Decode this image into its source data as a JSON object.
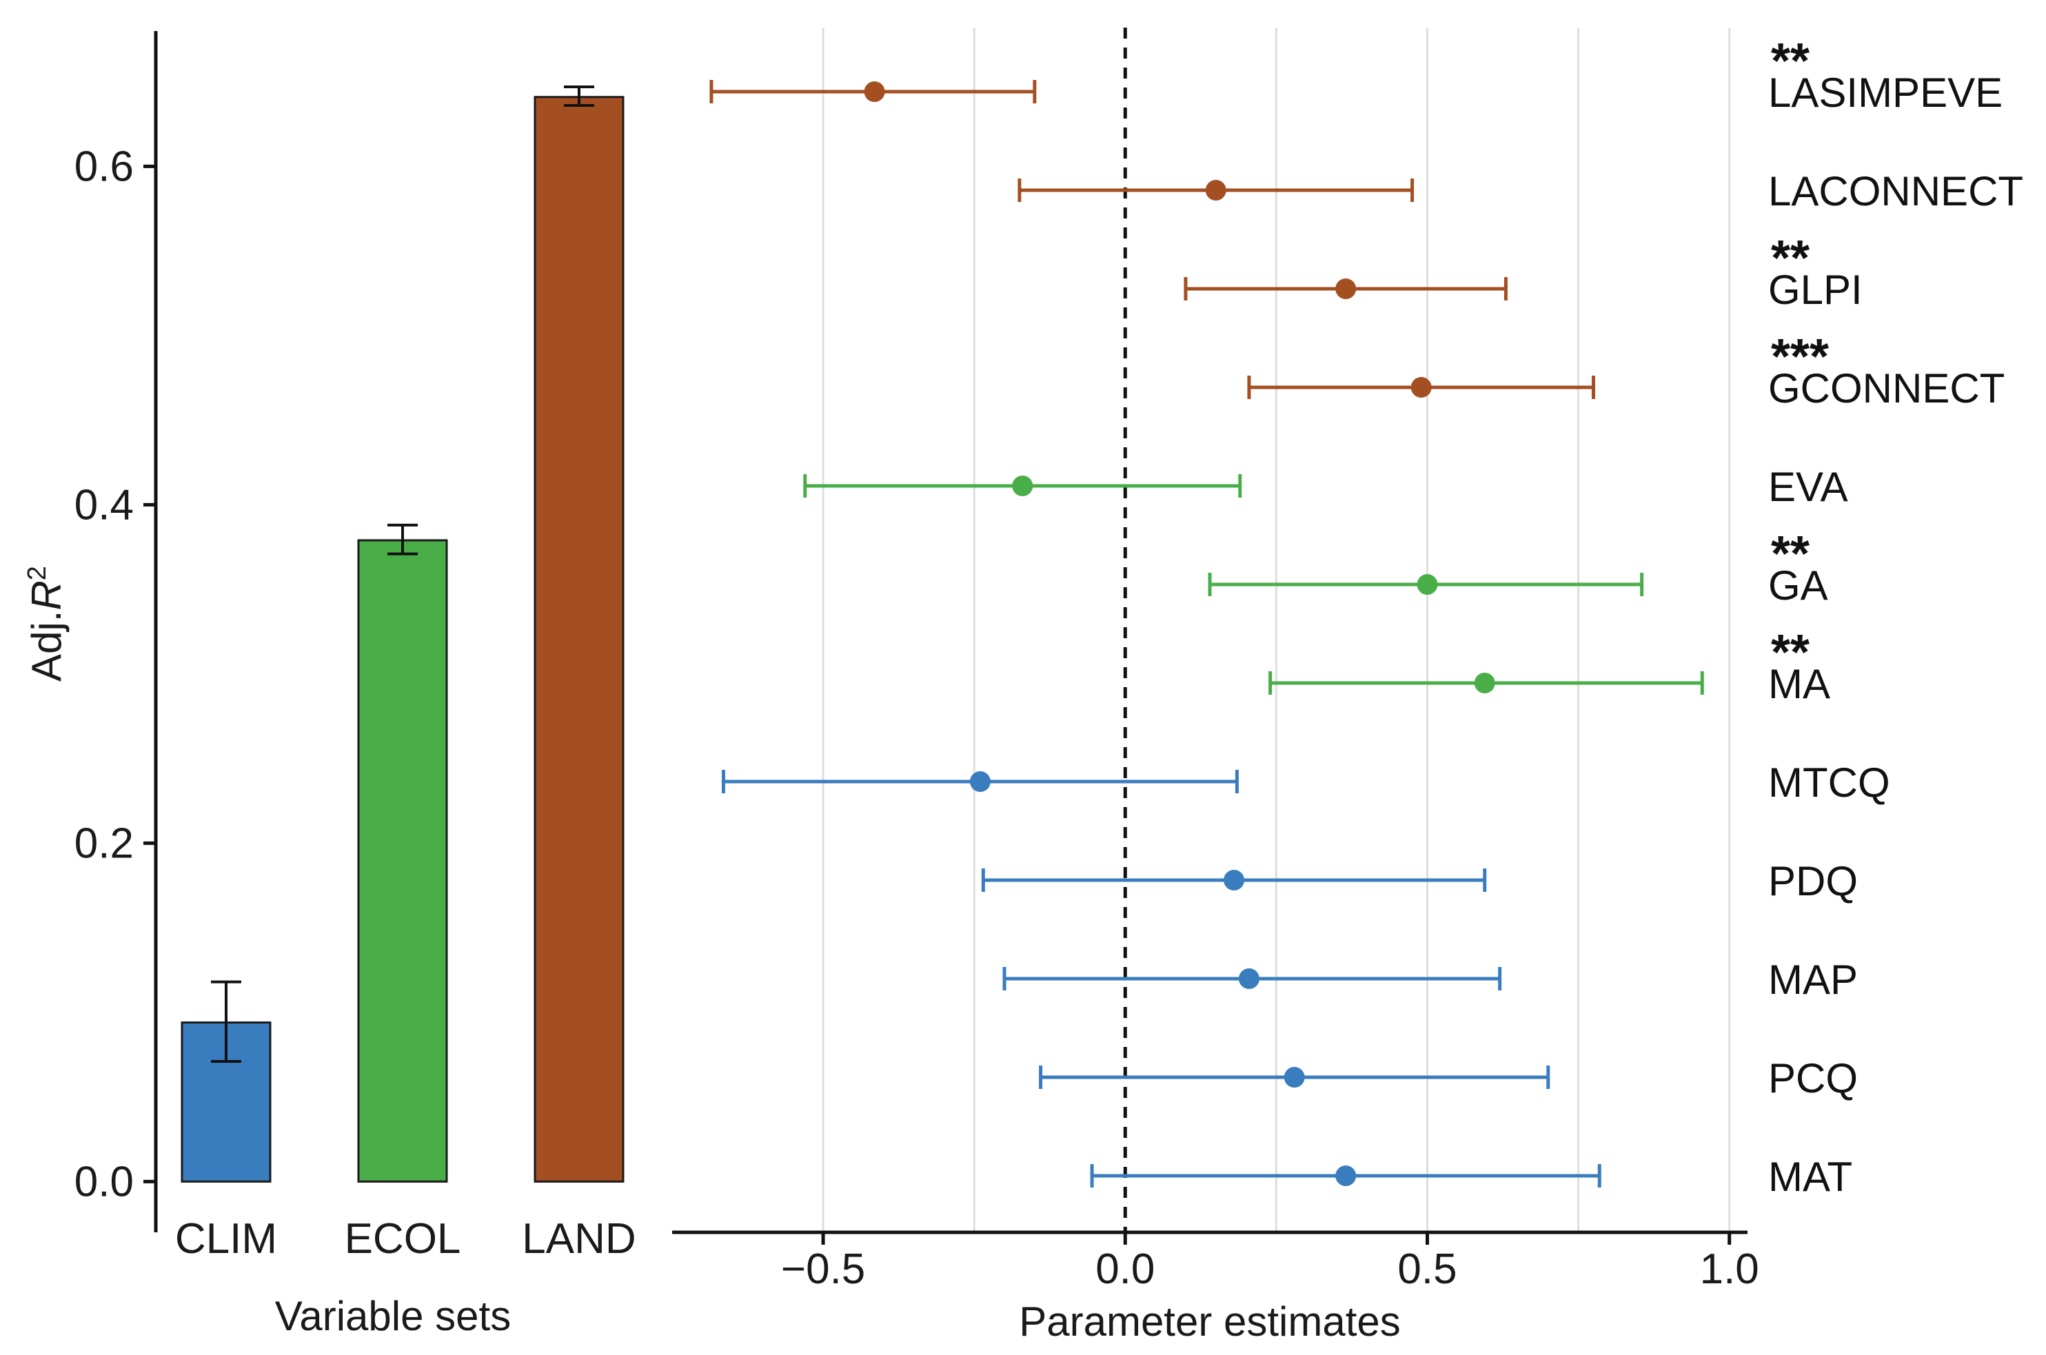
{
  "colors": {
    "clim": "#3a7dbf",
    "ecol": "#4aae48",
    "land": "#a44f22",
    "axis": "#111111",
    "grid": "#dedede"
  },
  "chart_data": [
    {
      "type": "bar",
      "title": "",
      "xlabel": "Variable sets",
      "ylabel_prefix": "Adj.",
      "ylabel_var": "R",
      "ylabel_sup": "2",
      "categories": [
        "CLIM",
        "ECOL",
        "LAND"
      ],
      "values": [
        0.094,
        0.379,
        0.641
      ],
      "error_low": [
        0.071,
        0.371,
        0.636
      ],
      "error_high": [
        0.118,
        0.388,
        0.647
      ],
      "bar_colors": [
        "#3a7dbf",
        "#4aae48",
        "#a44f22"
      ],
      "ylim": [
        -0.03,
        0.68
      ],
      "yticks": [
        0.0,
        0.2,
        0.4,
        0.6
      ],
      "ytick_labels": [
        "0.0",
        "0.2",
        "0.4",
        "0.6"
      ],
      "grid": false
    },
    {
      "type": "scatter",
      "subtype": "forest-plot",
      "title": "",
      "xlabel": "Parameter estimates",
      "ylabel": "",
      "xlim": [
        -0.75,
        1.03
      ],
      "xticks": [
        -0.5,
        0.0,
        0.5,
        1.0
      ],
      "xtick_labels": [
        "−0.5",
        "0.0",
        "0.5",
        "1.0"
      ],
      "minor_gridlines": [
        -0.25,
        0.25,
        0.75
      ],
      "reference_line": 0.0,
      "grid": true,
      "series": [
        {
          "label": "LASIMPEVE",
          "estimate": -0.415,
          "lower": -0.685,
          "upper": -0.15,
          "group": "LAND",
          "color": "#a44f22",
          "significance": "**"
        },
        {
          "label": "LACONNECT",
          "estimate": 0.15,
          "lower": -0.175,
          "upper": 0.475,
          "group": "LAND",
          "color": "#a44f22",
          "significance": ""
        },
        {
          "label": "GLPI",
          "estimate": 0.365,
          "lower": 0.1,
          "upper": 0.63,
          "group": "LAND",
          "color": "#a44f22",
          "significance": "**"
        },
        {
          "label": "GCONNECT",
          "estimate": 0.49,
          "lower": 0.205,
          "upper": 0.775,
          "group": "LAND",
          "color": "#a44f22",
          "significance": "***"
        },
        {
          "label": "EVA",
          "estimate": -0.17,
          "lower": -0.53,
          "upper": 0.19,
          "group": "ECOL",
          "color": "#4aae48",
          "significance": ""
        },
        {
          "label": "GA",
          "estimate": 0.5,
          "lower": 0.14,
          "upper": 0.855,
          "group": "ECOL",
          "color": "#4aae48",
          "significance": "**"
        },
        {
          "label": "MA",
          "estimate": 0.595,
          "lower": 0.24,
          "upper": 0.955,
          "group": "ECOL",
          "color": "#4aae48",
          "significance": "**"
        },
        {
          "label": "MTCQ",
          "estimate": -0.24,
          "lower": -0.665,
          "upper": 0.185,
          "group": "CLIM",
          "color": "#3a7dbf",
          "significance": ""
        },
        {
          "label": "PDQ",
          "estimate": 0.18,
          "lower": -0.235,
          "upper": 0.595,
          "group": "CLIM",
          "color": "#3a7dbf",
          "significance": ""
        },
        {
          "label": "MAP",
          "estimate": 0.205,
          "lower": -0.2,
          "upper": 0.62,
          "group": "CLIM",
          "color": "#3a7dbf",
          "significance": ""
        },
        {
          "label": "PCQ",
          "estimate": 0.28,
          "lower": -0.14,
          "upper": 0.7,
          "group": "CLIM",
          "color": "#3a7dbf",
          "significance": ""
        },
        {
          "label": "MAT",
          "estimate": 0.365,
          "lower": -0.055,
          "upper": 0.785,
          "group": "CLIM",
          "color": "#3a7dbf",
          "significance": ""
        }
      ]
    }
  ]
}
